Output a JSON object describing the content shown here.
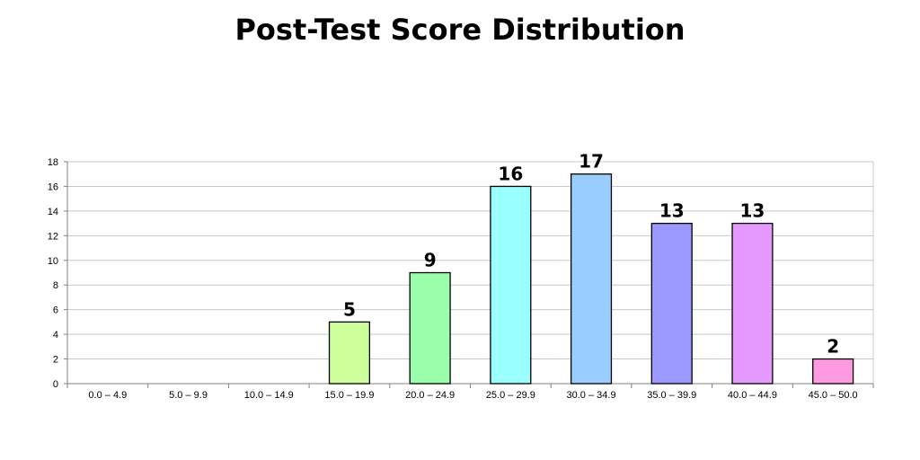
{
  "chart_data": {
    "type": "bar",
    "title": "Post-Test Score Distribution",
    "categories": [
      "0.0 – 4.9",
      "5.0 – 9.9",
      "10.0 – 14.9",
      "15.0 – 19.9",
      "20.0 – 24.9",
      "25.0 – 29.9",
      "30.0 – 34.9",
      "35.0 – 39.9",
      "40.0 – 44.9",
      "45.0 – 50.0"
    ],
    "values": [
      0,
      0,
      0,
      5,
      9,
      16,
      17,
      13,
      13,
      2
    ],
    "data_labels": [
      "",
      "",
      "",
      "5",
      "9",
      "16",
      "17",
      "13",
      "13",
      "2"
    ],
    "bar_colors": [
      "#cccccc",
      "#cccccc",
      "#cccccc",
      "#ccff99",
      "#99ffaa",
      "#99ffff",
      "#99ccff",
      "#9999ff",
      "#e599ff",
      "#ff99e0"
    ],
    "ylim": [
      0,
      18
    ],
    "yticks": [
      0,
      2,
      4,
      6,
      8,
      10,
      12,
      14,
      16,
      18
    ],
    "grid": true,
    "legend": "none"
  }
}
